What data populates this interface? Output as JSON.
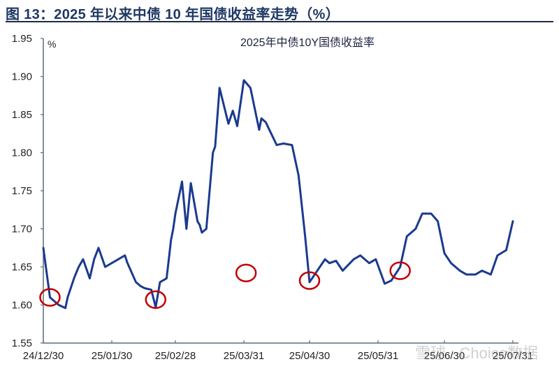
{
  "figure": {
    "title": "图 13：2025 年以来中债 10 年国债收益率走势（%）"
  },
  "chart_data": {
    "type": "line",
    "title": "2025年中债10Y国债收益率",
    "ylabel": "%",
    "xlabel": "",
    "ylim": [
      1.55,
      1.95
    ],
    "yticks": [
      "1.95",
      "1.90",
      "1.85",
      "1.80",
      "1.75",
      "1.70",
      "1.65",
      "1.60",
      "1.55"
    ],
    "xticks": [
      "24/12/30",
      "25/01/30",
      "25/02/28",
      "25/03/31",
      "25/04/30",
      "25/05/31",
      "25/06/30",
      "25/07/31"
    ],
    "grid": false,
    "legend": null,
    "color": "#1a3a8f",
    "highlight_color": "#c00000",
    "series": [
      {
        "name": "中债10Y国债收益率",
        "x": [
          "24/12/30",
          "25/01/02",
          "25/01/06",
          "25/01/09",
          "25/01/10",
          "25/01/13",
          "25/01/15",
          "25/01/17",
          "25/01/20",
          "25/01/22",
          "25/01/24",
          "25/01/27",
          "25/02/05",
          "25/02/06",
          "25/02/10",
          "25/02/12",
          "25/02/14",
          "25/02/17",
          "25/02/19",
          "25/02/21",
          "25/02/24",
          "25/02/25",
          "25/02/26",
          "25/02/27",
          "25/02/28",
          "25/03/03",
          "25/03/05",
          "25/03/07",
          "25/03/10",
          "25/03/11",
          "25/03/12",
          "25/03/14",
          "25/03/17",
          "25/03/18",
          "25/03/20",
          "25/03/24",
          "25/03/26",
          "25/03/28",
          "25/03/31",
          "25/04/03",
          "25/04/07",
          "25/04/08",
          "25/04/10",
          "25/04/15",
          "25/04/18",
          "25/04/22",
          "25/04/25",
          "25/04/28",
          "25/04/30",
          "25/05/07",
          "25/05/09",
          "25/05/12",
          "25/05/15",
          "25/05/20",
          "25/05/23",
          "25/05/27",
          "25/05/30",
          "25/06/03",
          "25/06/06",
          "25/06/10",
          "25/06/13",
          "25/06/17",
          "25/06/20",
          "25/06/24",
          "25/06/27",
          "25/06/30",
          "25/07/03",
          "25/07/07",
          "25/07/10",
          "25/07/14",
          "25/07/17",
          "25/07/21",
          "25/07/24",
          "25/07/28",
          "25/07/31"
        ],
        "values": [
          1.675,
          1.61,
          1.6,
          1.596,
          1.61,
          1.636,
          1.65,
          1.66,
          1.635,
          1.66,
          1.675,
          1.65,
          1.665,
          1.656,
          1.63,
          1.625,
          1.622,
          1.62,
          1.597,
          1.63,
          1.635,
          1.66,
          1.685,
          1.7,
          1.72,
          1.762,
          1.7,
          1.76,
          1.71,
          1.705,
          1.695,
          1.7,
          1.8,
          1.808,
          1.885,
          1.838,
          1.855,
          1.835,
          1.895,
          1.885,
          1.83,
          1.845,
          1.84,
          1.81,
          1.812,
          1.81,
          1.77,
          1.69,
          1.63,
          1.66,
          1.655,
          1.658,
          1.645,
          1.66,
          1.665,
          1.655,
          1.66,
          1.628,
          1.632,
          1.65,
          1.69,
          1.7,
          1.72,
          1.72,
          1.71,
          1.668,
          1.655,
          1.645,
          1.64,
          1.64,
          1.645,
          1.64,
          1.665,
          1.672,
          1.71
        ]
      }
    ],
    "annotations": [
      {
        "type": "circle",
        "near": "25/01/02",
        "value": 1.61
      },
      {
        "type": "circle",
        "near": "25/02/19",
        "value": 1.607
      },
      {
        "type": "circle",
        "near": "25/04/01",
        "value": 1.642
      },
      {
        "type": "circle",
        "near": "25/04/30",
        "value": 1.632
      },
      {
        "type": "circle",
        "near": "25/06/10",
        "value": 1.645
      }
    ]
  },
  "watermark": {
    "text": "雪球 · Choice数据"
  }
}
